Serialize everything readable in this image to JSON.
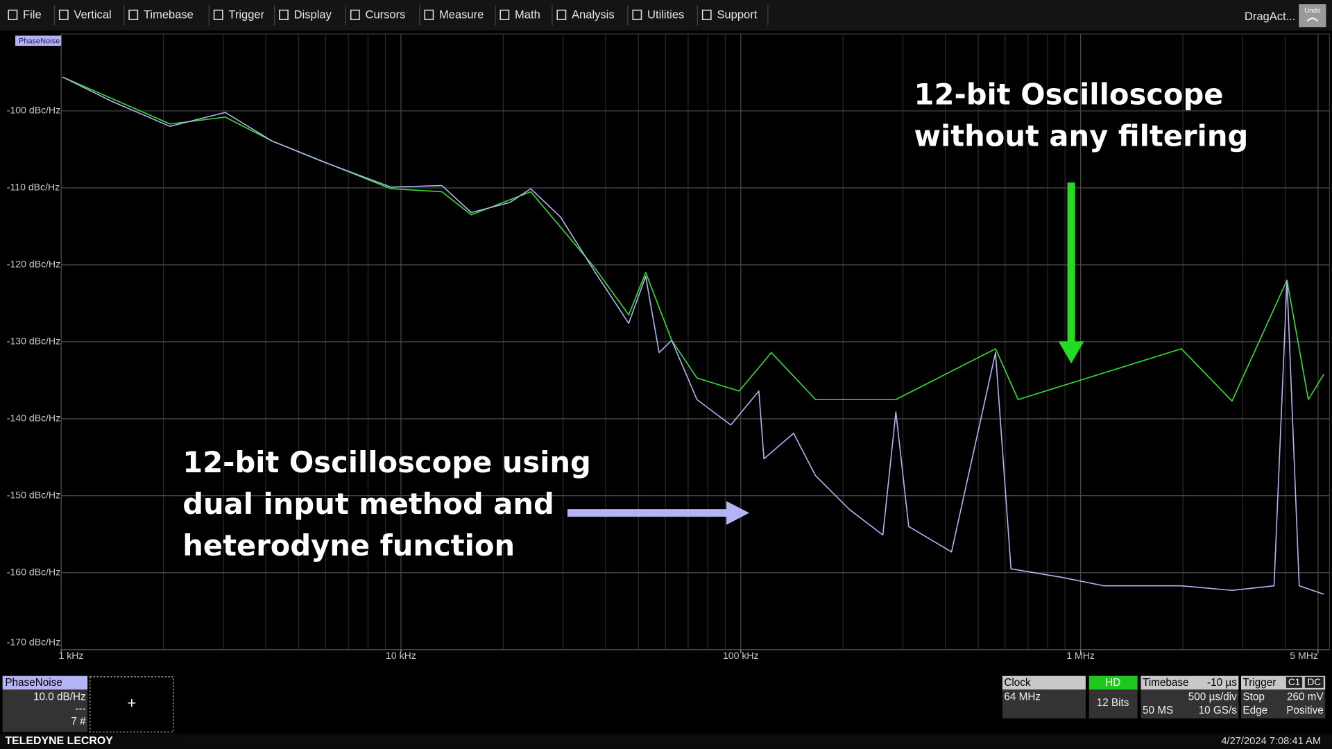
{
  "menu": {
    "items": [
      "File",
      "Vertical",
      "Timebase",
      "Trigger",
      "Display",
      "Cursors",
      "Measure",
      "Math",
      "Analysis",
      "Utilities",
      "Support"
    ],
    "right": "DragAct...",
    "undo": "Undo"
  },
  "chart_data": {
    "type": "line",
    "trace_label": "PhaseNoise",
    "xscale": "log",
    "xlim": [
      1000,
      5400000
    ],
    "ylim": [
      -170,
      -90
    ],
    "xticks": [
      {
        "value": 1000,
        "label": "1 kHz"
      },
      {
        "value": 10000,
        "label": "10 kHz"
      },
      {
        "value": 100000,
        "label": "100 kHz"
      },
      {
        "value": 1000000,
        "label": "1 MHz"
      },
      {
        "value": 5000000,
        "label": "5 MHz"
      }
    ],
    "yticks": [
      {
        "value": -100,
        "label": "-100 dBc/Hz"
      },
      {
        "value": -110,
        "label": "-110 dBc/Hz"
      },
      {
        "value": -120,
        "label": "-120 dBc/Hz"
      },
      {
        "value": -130,
        "label": "-130 dBc/Hz"
      },
      {
        "value": -140,
        "label": "-140 dBc/Hz"
      },
      {
        "value": -150,
        "label": "-150 dBc/Hz"
      },
      {
        "value": -160,
        "label": "-160 dBc/Hz"
      },
      {
        "value": -170,
        "label": "-170 dBc/Hz"
      }
    ],
    "grid": true,
    "minor_grid": true,
    "series": [
      {
        "color": "#33e033",
        "x": [
          1010,
          2090,
          3040,
          4170,
          9330,
          13200,
          16100,
          24100,
          37200,
          46800,
          52500,
          62600,
          74300,
          98900,
          123000,
          166000,
          286000,
          562000,
          655000,
          1980000,
          2790000,
          4050000,
          4680000,
          5200000
        ],
        "values": [
          -95.6,
          -101.7,
          -100.8,
          -103.9,
          -110.1,
          -110.5,
          -113.5,
          -110.5,
          -120.4,
          -126.5,
          -121,
          -129.8,
          -134.7,
          -136.4,
          -131.4,
          -137.5,
          -137.5,
          -130.9,
          -137.5,
          -130.9,
          -137.7,
          -122,
          -137.5,
          -134.2
        ]
      },
      {
        "color": "#b4b4f4",
        "x": [
          1010,
          1400,
          2090,
          3040,
          4170,
          5890,
          9330,
          13200,
          16100,
          20900,
          24100,
          29500,
          37200,
          46800,
          52500,
          57500,
          62600,
          74300,
          93500,
          113000,
          117000,
          143000,
          166000,
          209000,
          262000,
          286000,
          312000,
          417000,
          562000,
          624000,
          880000,
          1170000,
          1980000,
          2790000,
          3710000,
          4050000,
          4400000,
          5200000
        ],
        "values": [
          -95.6,
          -98.7,
          -102,
          -100.2,
          -103.9,
          -106.6,
          -109.9,
          -109.7,
          -113.2,
          -111.9,
          -110.1,
          -113.8,
          -120.9,
          -127.6,
          -121.5,
          -131.4,
          -129.8,
          -137.5,
          -140.8,
          -136.4,
          -145.2,
          -141.9,
          -147.4,
          -151.8,
          -155.1,
          -139.1,
          -154,
          -157.3,
          -131.4,
          -159.5,
          -160.6,
          -161.7,
          -161.7,
          -162.3,
          -161.7,
          -122,
          -161.7,
          -162.8
        ]
      }
    ],
    "annotations": [
      {
        "lines": [
          "12-bit Oscilloscope",
          "without any filtering"
        ]
      },
      {
        "lines": [
          "12-bit Oscilloscope using",
          "dual input method and",
          "heterodyne function"
        ]
      }
    ]
  },
  "channel_box": {
    "title": "PhaseNoise",
    "scale": "10.0 dB/Hz",
    "offset": "---",
    "count": "7 #",
    "add": "+"
  },
  "status": {
    "clock": {
      "title": "Clock",
      "value": "64 MHz"
    },
    "hd": {
      "title": "HD",
      "value": "12 Bits"
    },
    "timebase": {
      "title": "Timebase",
      "delay": "-10 µs",
      "per_div": "500 µs/div",
      "samples": "50 MS",
      "rate": "10 GS/s"
    },
    "trigger": {
      "title": "Trigger",
      "channel": "C1",
      "coupling": "DC",
      "mode": "Stop",
      "level": "260 mV",
      "type": "Edge",
      "slope": "Positive"
    }
  },
  "footer": {
    "brand": "TELEDYNE LECROY",
    "timestamp": "4/27/2024 7:08:41 AM"
  }
}
